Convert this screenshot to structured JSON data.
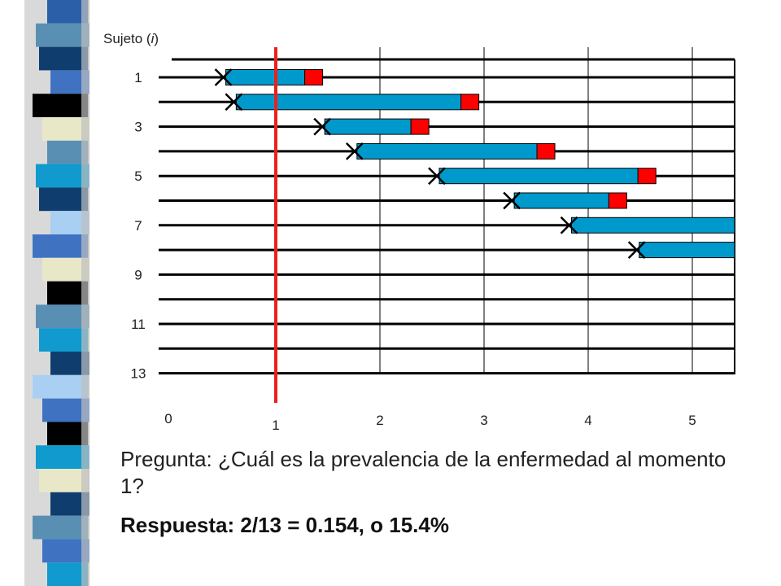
{
  "slide": {
    "y_axis_title_prefix": "Sujeto (",
    "y_axis_title_italic": "i",
    "y_axis_title_suffix": ")",
    "question": "Pregunta: ¿Cuál es la prevalencia de la enfermedad al momento 1?",
    "answer": "Respuesta: 2/13 = 0.154, o 15.4%"
  },
  "colors": {
    "disease_bar": "#0099CC",
    "end_marker": "#FF0000",
    "time_marker": "#E8221C",
    "grid": "#000000",
    "strip": [
      "#2B5FA8",
      "#5A8FB4",
      "#0F3E6E",
      "#3F73C2",
      "#000000",
      "#E8E8C8",
      "#5A8FB4",
      "#109ACD",
      "#0F3E6E",
      "#A9CFF2",
      "#3F73C2",
      "#E8E8C8",
      "#000000",
      "#5A8FB4",
      "#109ACD",
      "#0F3E6E",
      "#A9CFF2",
      "#3F73C2",
      "#000000",
      "#109ACD",
      "#E8E8C8",
      "#0F3E6E",
      "#5A8FB4",
      "#3F73C2",
      "#109ACD"
    ]
  },
  "chart_data": {
    "type": "timeline",
    "y_tick_labels": [
      "1",
      "3",
      "5",
      "7",
      "9",
      "11",
      "13"
    ],
    "x_tick_labels": [
      "0",
      "1",
      "2",
      "3",
      "4",
      "5"
    ],
    "subjects": [
      1,
      2,
      3,
      4,
      5,
      6,
      7,
      8,
      9,
      10,
      11,
      12,
      13
    ],
    "time_marker_at": 1,
    "episodes": [
      {
        "subject": 1,
        "onset": 0.52,
        "end": 1.45,
        "ended": true
      },
      {
        "subject": 2,
        "onset": 0.62,
        "end": 2.95,
        "ended": true
      },
      {
        "subject": 3,
        "onset": 1.47,
        "end": 2.47,
        "ended": true
      },
      {
        "subject": 4,
        "onset": 1.78,
        "end": 3.68,
        "ended": true
      },
      {
        "subject": 5,
        "onset": 2.57,
        "end": 4.65,
        "ended": true
      },
      {
        "subject": 6,
        "onset": 3.29,
        "end": 4.37,
        "ended": true
      },
      {
        "subject": 7,
        "onset": 3.84,
        "end": 5.43,
        "ended": false
      },
      {
        "subject": 8,
        "onset": 4.49,
        "end": 5.43,
        "ended": false
      }
    ]
  }
}
